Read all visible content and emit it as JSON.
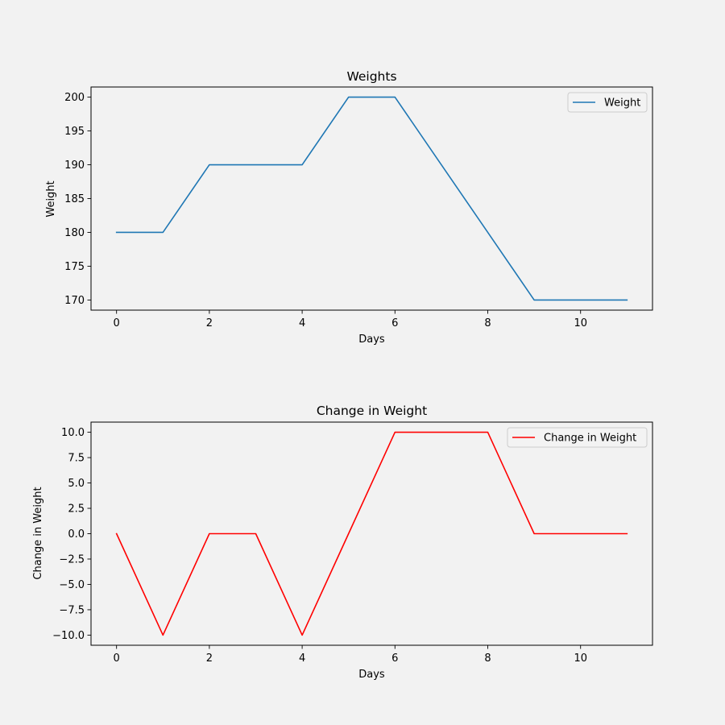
{
  "figure": {
    "background": "#f2f2f2"
  },
  "chart_data": [
    {
      "type": "line",
      "title": "Weights",
      "xlabel": "Days",
      "ylabel": "Weight",
      "x": [
        0,
        1,
        2,
        3,
        4,
        5,
        6,
        7,
        8,
        9,
        10,
        11
      ],
      "series": [
        {
          "name": "Weight",
          "color": "#1f77b4",
          "values": [
            180,
            180,
            190,
            190,
            190,
            200,
            200,
            190,
            180,
            170,
            170,
            170
          ]
        }
      ],
      "xlim": [
        -0.55,
        11.55
      ],
      "ylim": [
        168.5,
        201.5
      ],
      "xticks": [
        0,
        2,
        4,
        6,
        8,
        10
      ],
      "xtick_labels": [
        "0",
        "2",
        "4",
        "6",
        "8",
        "10"
      ],
      "yticks": [
        170,
        175,
        180,
        185,
        190,
        195,
        200
      ],
      "ytick_labels": [
        "170",
        "175",
        "180",
        "185",
        "190",
        "195",
        "200"
      ],
      "grid": false,
      "legend": "top-right"
    },
    {
      "type": "line",
      "title": "Change in Weight",
      "xlabel": "Days",
      "ylabel": "Change in Weight",
      "x": [
        0,
        1,
        2,
        3,
        4,
        5,
        6,
        7,
        8,
        9,
        10,
        11
      ],
      "series": [
        {
          "name": "Change in Weight",
          "color": "#ff0000",
          "values": [
            0,
            -10,
            0,
            0,
            -10,
            0,
            10,
            10,
            10,
            0,
            0,
            0
          ]
        }
      ],
      "xlim": [
        -0.55,
        11.55
      ],
      "ylim": [
        -11,
        11
      ],
      "xticks": [
        0,
        2,
        4,
        6,
        8,
        10
      ],
      "xtick_labels": [
        "0",
        "2",
        "4",
        "6",
        "8",
        "10"
      ],
      "yticks": [
        -10,
        -7.5,
        -5,
        -2.5,
        0,
        2.5,
        5,
        7.5,
        10
      ],
      "ytick_labels": [
        "−10.0",
        "−7.5",
        "−5.0",
        "−2.5",
        "0.0",
        "2.5",
        "5.0",
        "7.5",
        "10.0"
      ],
      "grid": false,
      "legend": "top-right"
    }
  ]
}
